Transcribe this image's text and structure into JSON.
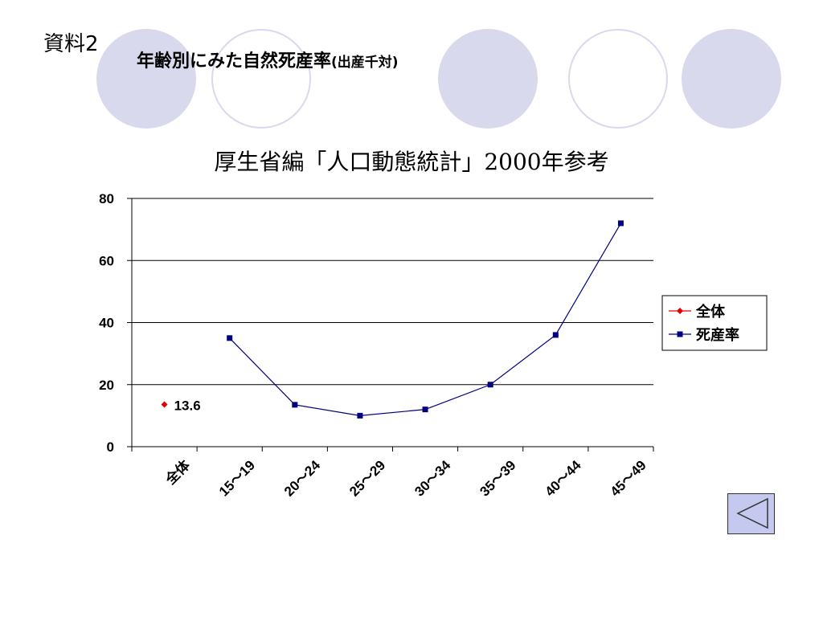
{
  "header": {
    "doc_label": "資料2",
    "title_main": "年齢別にみた自然死産率",
    "title_paren": "(出産千対)"
  },
  "colors": {
    "decor": "#d9d9ee",
    "series_overall": "#e00000",
    "series_rate": "#000080",
    "back_button": "#c5c9f0"
  },
  "chart_data": {
    "type": "line",
    "title": "厚生省編「人口動態統計」2000年参考",
    "categories": [
      "全体",
      "15～19",
      "20～24",
      "25～29",
      "30～34",
      "35～39",
      "40～44",
      "45～49"
    ],
    "series": [
      {
        "name": "全体",
        "values": [
          13.6,
          null,
          null,
          null,
          null,
          null,
          null,
          null
        ],
        "data_label": "13.6"
      },
      {
        "name": "死産率",
        "values": [
          null,
          35,
          13.5,
          10,
          12,
          20,
          36,
          72
        ]
      }
    ],
    "ylim": [
      0,
      80
    ],
    "yticks": [
      0,
      20,
      40,
      60,
      80
    ],
    "grid": true,
    "legend_position": "right"
  },
  "nav": {
    "back_icon": "triangle-left-icon"
  }
}
